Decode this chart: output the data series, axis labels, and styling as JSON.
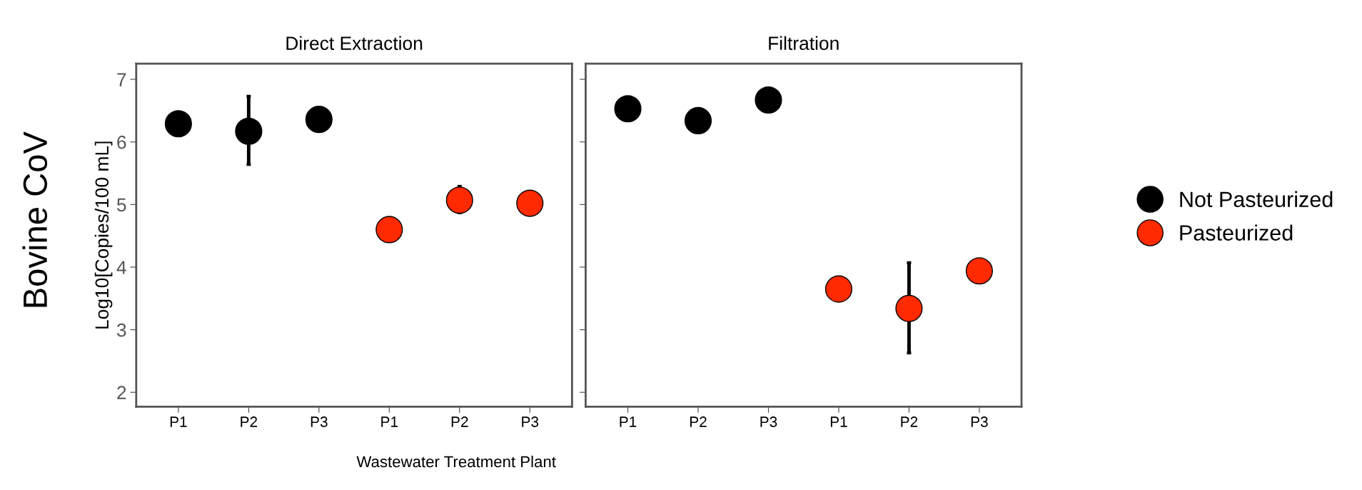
{
  "chart_data": [
    {
      "type": "scatter",
      "title": "Direct Extraction",
      "ylabel": "Log10[Copies/100 mL]",
      "categories": [
        "P1",
        "P2",
        "P3",
        "P1",
        "P2",
        "P3"
      ],
      "ylim": [
        1.77,
        7.25
      ],
      "yticks": [
        2,
        3,
        4,
        5,
        6,
        7
      ],
      "marker": "circle",
      "annotations": [
        "Bovine CoV",
        "Wastewater Treatment Plant"
      ],
      "series": [
        {
          "color": "#000000",
          "values": [
            6.29,
            6.17,
            6.36,
            null,
            null,
            null
          ],
          "errors": [
            null,
            [
              5.64,
              6.73
            ],
            null,
            null,
            null,
            null
          ]
        },
        {
          "color": "#ff2a00",
          "values": [
            null,
            null,
            null,
            4.6,
            5.07,
            5.02
          ],
          "errors": [
            null,
            null,
            null,
            null,
            [
              4.87,
              5.29
            ],
            null
          ]
        }
      ]
    },
    {
      "type": "scatter",
      "title": "Filtration",
      "categories": [
        "P1",
        "P2",
        "P3",
        "P1",
        "P2",
        "P3"
      ],
      "ylim": [
        1.77,
        7.25
      ],
      "yticks": [
        2,
        3,
        4,
        5,
        6,
        7
      ],
      "tick_labels": "x",
      "marker": "circle",
      "legend": "right",
      "series": [
        {
          "name": "Not Pasteurized",
          "color": "#000000",
          "values": [
            6.53,
            6.34,
            6.67,
            null,
            null,
            null
          ]
        },
        {
          "name": "Pasteurized",
          "color": "#ff2a00",
          "values": [
            null,
            null,
            null,
            3.65,
            3.34,
            3.94
          ],
          "errors": [
            null,
            null,
            null,
            null,
            [
              2.63,
              4.07
            ],
            null
          ]
        }
      ]
    }
  ]
}
